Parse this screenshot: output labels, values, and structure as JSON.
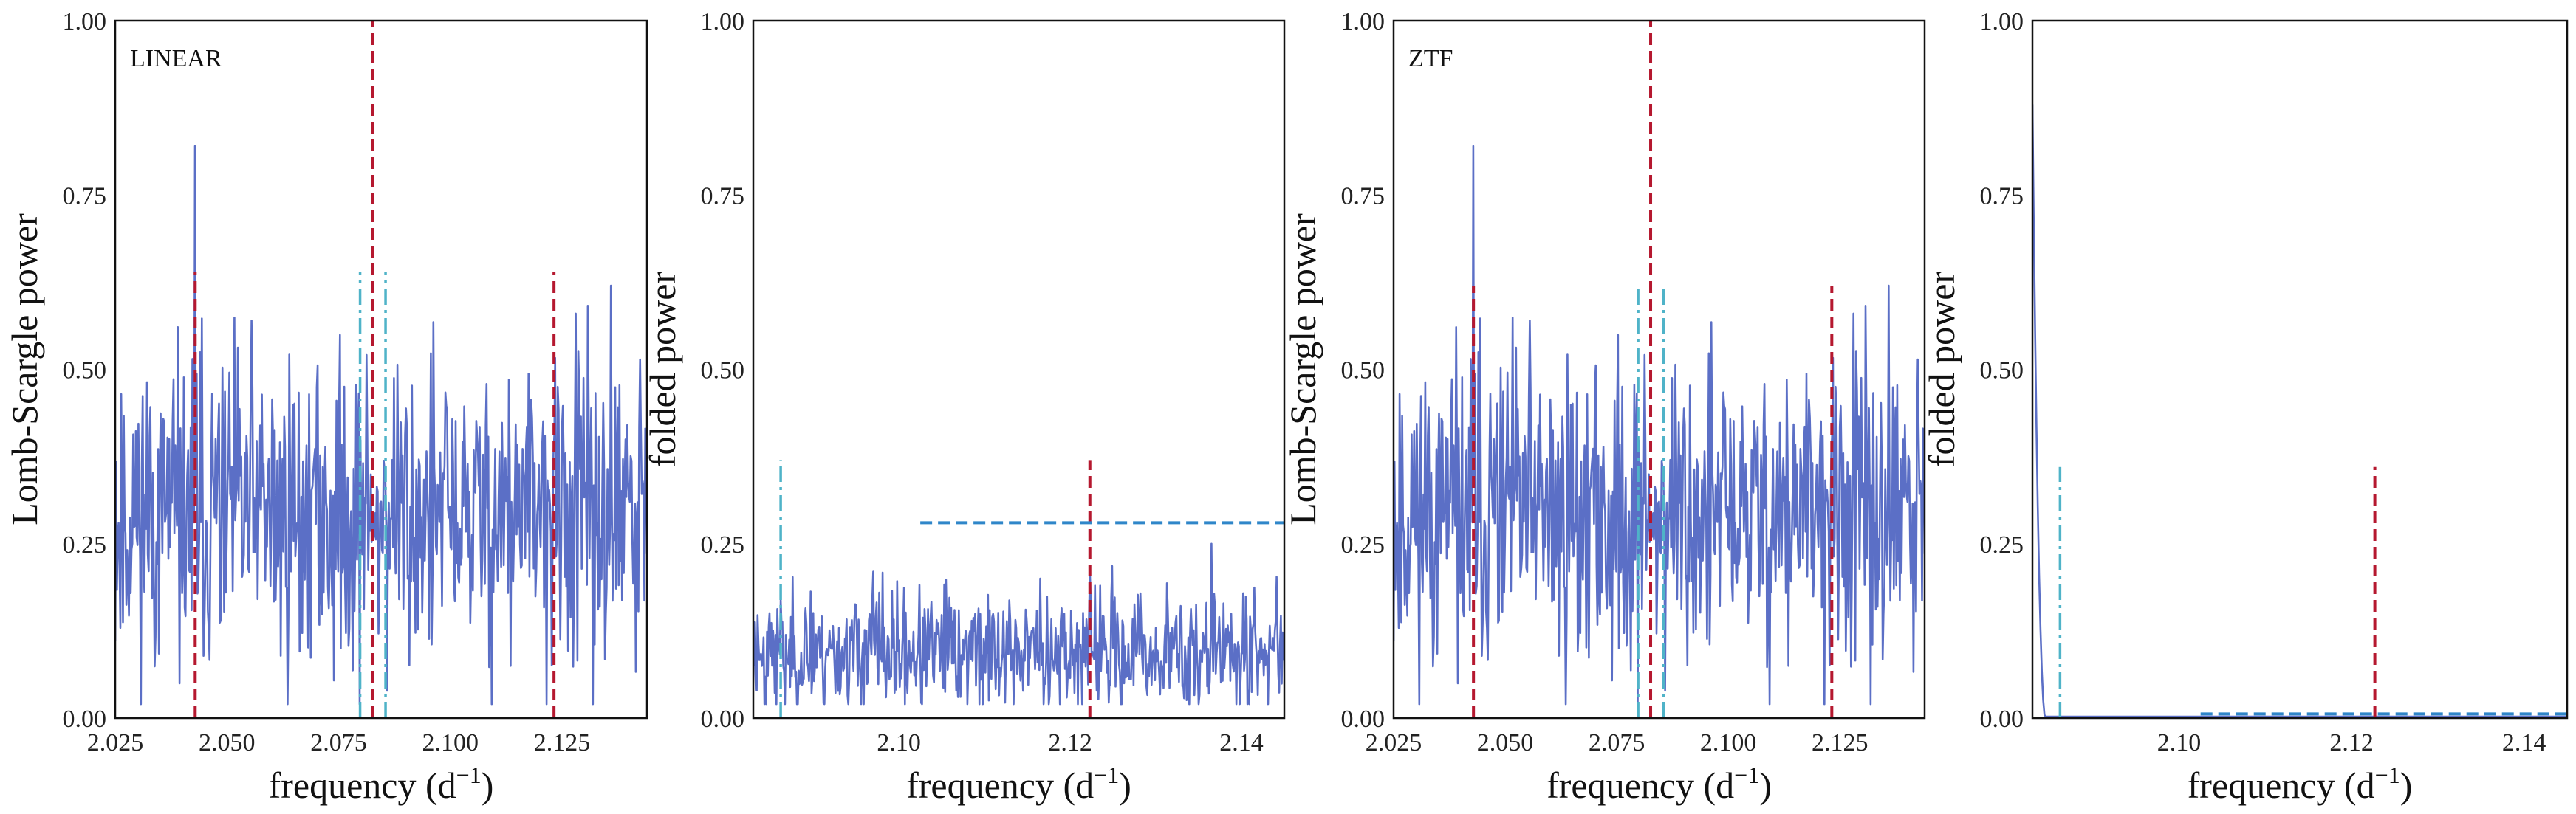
{
  "colors": {
    "series": "#5b6fc6",
    "red_marker": "#b5182f",
    "cyan_marker": "#4fb3c8",
    "blue_dashed": "#2f86c9",
    "frame": "#111111"
  },
  "chart_data": [
    {
      "type": "line",
      "panel_label": "LINEAR",
      "xlabel_text": "frequency (d",
      "xlabel_sup": "−1",
      "xlabel_close": ")",
      "ylabel": "Lomb-Scargle power",
      "xlim": [
        2.025,
        2.144
      ],
      "ylim": [
        0,
        1
      ],
      "xticks": [
        "2.025",
        "2.050",
        "2.075",
        "2.100",
        "2.125"
      ],
      "xtick_values": [
        2.025,
        2.05,
        2.075,
        2.1,
        2.125
      ],
      "yticks": [
        "0.00",
        "0.25",
        "0.50",
        "0.75",
        "1.00"
      ],
      "ytick_values": [
        0,
        0.25,
        0.5,
        0.75,
        1.0
      ],
      "grid": false,
      "series_profile": {
        "mean": 0.29,
        "spread": 0.1,
        "seed": 11,
        "peaks": [
          {
            "x": 2.0428,
            "y": 0.82
          },
          {
            "x": 2.0555,
            "y": 0.57
          },
          {
            "x": 2.136,
            "y": 0.62
          },
          {
            "x": 2.128,
            "y": 0.58
          }
        ]
      },
      "markers": [
        {
          "kind": "red-dashed",
          "x": 2.0429,
          "y0": 0.0,
          "y1": 0.64
        },
        {
          "kind": "red-dashed",
          "x": 2.0826,
          "y0": 0.0,
          "y1": 1.0
        },
        {
          "kind": "red-dashed",
          "x": 2.1232,
          "y0": 0.0,
          "y1": 0.64
        },
        {
          "kind": "cyan-dashdot",
          "x": 2.0798,
          "y0": 0.0,
          "y1": 0.64
        },
        {
          "kind": "cyan-dashdot",
          "x": 2.0855,
          "y0": 0.0,
          "y1": 0.64
        }
      ]
    },
    {
      "type": "line",
      "panel_label": "",
      "xlabel_text": "frequency (d",
      "xlabel_sup": "−1",
      "xlabel_close": ")",
      "ylabel": "folded power",
      "xlim": [
        2.083,
        2.145
      ],
      "ylim": [
        0,
        1
      ],
      "xticks": [
        "2.10",
        "2.12",
        "2.14"
      ],
      "xtick_values": [
        2.1,
        2.12,
        2.14
      ],
      "yticks": [
        "0.00",
        "0.25",
        "0.50",
        "0.75",
        "1.00"
      ],
      "ytick_values": [
        0,
        0.25,
        0.5,
        0.75,
        1.0
      ],
      "grid": false,
      "series_profile": {
        "mean": 0.095,
        "spread": 0.04,
        "seed": 23,
        "peaks": [
          {
            "x": 2.097,
            "y": 0.21
          },
          {
            "x": 2.1165,
            "y": 0.2
          },
          {
            "x": 2.1365,
            "y": 0.25
          },
          {
            "x": 2.1235,
            "y": 0.19
          }
        ]
      },
      "markers": [
        {
          "kind": "red-dashed",
          "x": 2.1223,
          "y0": 0.0,
          "y1": 0.37
        },
        {
          "kind": "cyan-dashdot",
          "x": 2.0862,
          "y0": 0.0,
          "y1": 0.37
        },
        {
          "kind": "blue-hdashed",
          "y": 0.28,
          "x0": 2.1025,
          "x1": 2.145
        }
      ]
    },
    {
      "type": "line",
      "panel_label": "ZTF",
      "xlabel_text": "frequency (d",
      "xlabel_sup": "−1",
      "xlabel_close": ")",
      "ylabel": "Lomb-Scargle power",
      "xlim": [
        2.025,
        2.144
      ],
      "ylim": [
        0,
        1
      ],
      "xticks": [
        "2.025",
        "2.050",
        "2.075",
        "2.100",
        "2.125"
      ],
      "xtick_values": [
        2.025,
        2.05,
        2.075,
        2.1,
        2.125
      ],
      "yticks": [
        "0.00",
        "0.25",
        "0.50",
        "0.75",
        "1.00"
      ],
      "ytick_values": [
        0,
        0.25,
        0.5,
        0.75,
        1.0
      ],
      "grid": false,
      "series_profile": {
        "mean": 0.29,
        "spread": 0.1,
        "seed": 11,
        "peaks": [
          {
            "x": 2.0428,
            "y": 0.82
          },
          {
            "x": 2.0555,
            "y": 0.57
          },
          {
            "x": 2.136,
            "y": 0.62
          },
          {
            "x": 2.128,
            "y": 0.58
          }
        ]
      },
      "markers": [
        {
          "kind": "red-dashed",
          "x": 2.0429,
          "y0": 0.0,
          "y1": 0.62
        },
        {
          "kind": "red-dashed",
          "x": 2.0826,
          "y0": 0.0,
          "y1": 1.0
        },
        {
          "kind": "red-dashed",
          "x": 2.1232,
          "y0": 0.0,
          "y1": 0.62
        },
        {
          "kind": "cyan-dashdot",
          "x": 2.0798,
          "y0": 0.0,
          "y1": 0.62
        },
        {
          "kind": "cyan-dashdot",
          "x": 2.0855,
          "y0": 0.0,
          "y1": 0.62
        }
      ]
    },
    {
      "type": "line",
      "panel_label": "",
      "xlabel_text": "frequency (d",
      "xlabel_sup": "−1",
      "xlabel_close": ")",
      "ylabel": "folded power",
      "xlim": [
        2.083,
        2.145
      ],
      "ylim": [
        0,
        1
      ],
      "xticks": [
        "2.10",
        "2.12",
        "2.14"
      ],
      "xtick_values": [
        2.1,
        2.12,
        2.14
      ],
      "yticks": [
        "0.00",
        "0.25",
        "0.50",
        "0.75",
        "1.00"
      ],
      "ytick_values": [
        0,
        0.25,
        0.5,
        0.75,
        1.0
      ],
      "grid": false,
      "series_profile": {
        "mean": 0.0,
        "spread": 0.0,
        "seed": 5,
        "spike": {
          "x0": 2.083,
          "x1": 2.0845,
          "ymax": 0.88
        }
      },
      "markers": [
        {
          "kind": "red-dashed",
          "x": 2.1227,
          "y0": 0.0,
          "y1": 0.36
        },
        {
          "kind": "cyan-dashdot",
          "x": 2.0862,
          "y0": 0.0,
          "y1": 0.36
        },
        {
          "kind": "blue-hdashed",
          "y": 0.006,
          "x0": 2.1025,
          "x1": 2.145
        }
      ]
    }
  ]
}
